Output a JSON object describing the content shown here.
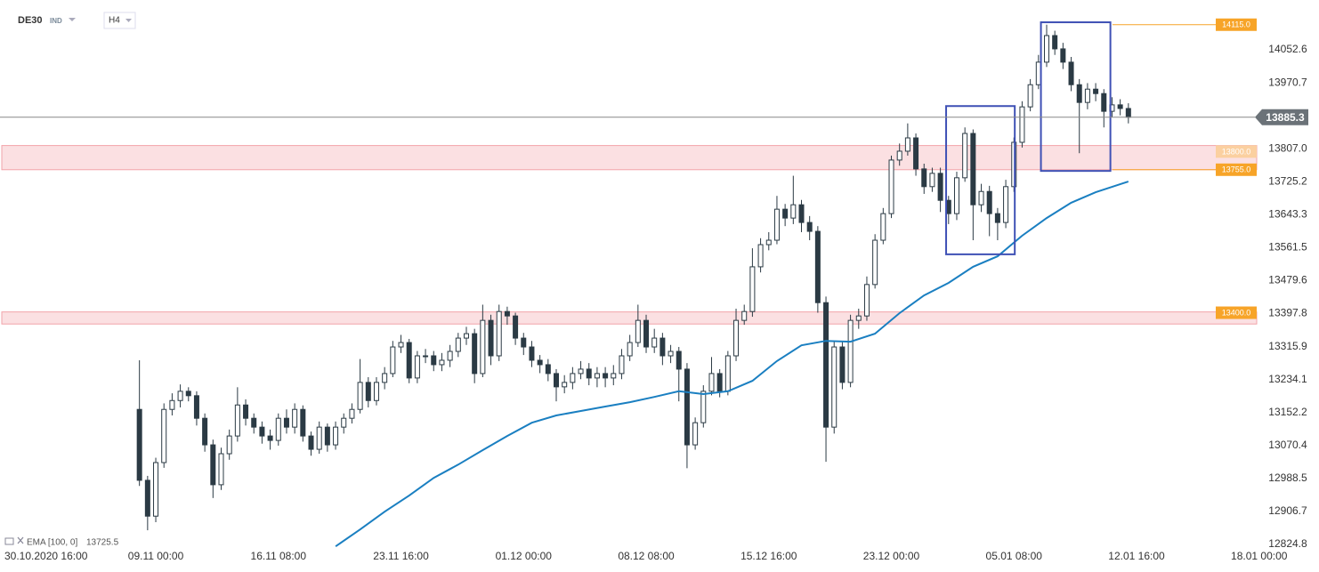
{
  "chart_data": {
    "type": "candlestick",
    "symbol": "DE30",
    "market": "IND",
    "timeframe": "H4",
    "x": [
      13,
      14,
      15,
      16,
      17,
      18,
      19,
      20,
      21,
      22,
      23,
      24,
      25,
      26,
      27,
      28,
      29,
      30,
      31,
      32,
      33,
      34,
      35,
      36,
      37,
      38,
      39,
      40,
      41,
      42,
      43,
      44,
      45,
      46,
      47,
      48,
      49,
      50,
      51,
      52,
      53,
      54,
      55,
      56,
      57,
      58,
      59,
      60,
      61,
      62,
      63,
      64,
      65,
      66,
      67,
      68,
      69,
      70,
      71,
      72,
      73,
      74,
      75,
      76,
      77,
      78,
      79,
      80,
      81,
      82,
      83,
      84,
      85,
      86,
      87,
      88,
      89,
      90,
      91,
      92,
      93,
      94,
      95,
      96,
      97,
      98,
      99,
      100,
      101,
      102,
      103,
      104,
      105,
      106,
      107,
      108,
      109,
      110,
      111,
      112,
      113,
      114,
      115,
      116,
      117,
      118,
      119,
      120,
      121,
      122,
      123,
      124,
      125,
      126,
      127,
      128,
      129,
      130,
      131,
      132,
      133,
      134
    ],
    "open": [
      13160,
      12984,
      12895,
      13028,
      13160,
      13182,
      13205,
      13194,
      13138,
      13072,
      12973,
      13050,
      13094,
      13171,
      13138,
      13116,
      13094,
      13083,
      13138,
      13116,
      13160,
      13094,
      13061,
      13116,
      13072,
      13116,
      13138,
      13160,
      13227,
      13182,
      13227,
      13249,
      13315,
      13326,
      13238,
      13293,
      13293,
      13271,
      13282,
      13304,
      13337,
      13348,
      13249,
      13381,
      13293,
      13403,
      13392,
      13337,
      13315,
      13282,
      13271,
      13249,
      13216,
      13227,
      13249,
      13260,
      13238,
      13249,
      13238,
      13249,
      13293,
      13326,
      13381,
      13315,
      13337,
      13293,
      13304,
      13260,
      13072,
      13127,
      13205,
      13249,
      13205,
      13293,
      13381,
      13403,
      13514,
      13569,
      13580,
      13657,
      13635,
      13668,
      13624,
      13602,
      13425,
      13116,
      13315,
      13227,
      13381,
      13392,
      13470,
      13580,
      13646,
      13779,
      13801,
      13834,
      13757,
      13713,
      13746,
      13679,
      13646,
      13735,
      13845,
      13668,
      13701,
      13646,
      13624,
      13713,
      13823,
      13911,
      13966,
      14022,
      14088,
      14055,
      14022,
      13966,
      13922,
      13955,
      13944,
      13900,
      13916,
      13907
    ],
    "high": [
      13282,
      12995,
      13040,
      13175,
      13200,
      13222,
      13215,
      13205,
      13150,
      13085,
      13065,
      13110,
      13215,
      13185,
      13150,
      13130,
      13110,
      13150,
      13160,
      13175,
      13170,
      13105,
      13130,
      13125,
      13130,
      13150,
      13175,
      13285,
      13240,
      13240,
      13265,
      13330,
      13345,
      13335,
      13305,
      13310,
      13305,
      13300,
      13320,
      13350,
      13365,
      13360,
      13420,
      13395,
      13420,
      13415,
      13400,
      13350,
      13330,
      13295,
      13285,
      13260,
      13245,
      13265,
      13280,
      13275,
      13265,
      13265,
      13270,
      13310,
      13345,
      13420,
      13395,
      13360,
      13350,
      13320,
      13315,
      13275,
      13140,
      13220,
      13290,
      13260,
      13305,
      13410,
      13420,
      13560,
      13585,
      13600,
      13690,
      13670,
      13740,
      13680,
      13640,
      13615,
      13440,
      13330,
      13330,
      13395,
      13410,
      13490,
      13595,
      13660,
      13790,
      13820,
      13870,
      13845,
      13770,
      13760,
      13760,
      13690,
      13750,
      13860,
      13855,
      13720,
      13715,
      13660,
      13730,
      13835,
      13925,
      13980,
      14040,
      14115,
      14100,
      14070,
      14035,
      13980,
      13970,
      13970,
      13955,
      13935,
      13930,
      13920
    ],
    "low": [
      12970,
      12860,
      12880,
      13015,
      13145,
      13165,
      13180,
      13120,
      13055,
      12940,
      12960,
      13035,
      13080,
      13120,
      13100,
      13075,
      13060,
      13070,
      13100,
      13100,
      13080,
      13045,
      13050,
      13055,
      13060,
      13100,
      13125,
      13150,
      13165,
      13170,
      13210,
      13240,
      13300,
      13225,
      13225,
      13275,
      13255,
      13255,
      13265,
      13290,
      13320,
      13225,
      13240,
      13270,
      13280,
      13370,
      13320,
      13295,
      13265,
      13250,
      13230,
      13180,
      13200,
      13210,
      13235,
      13220,
      13215,
      13215,
      13220,
      13235,
      13280,
      13315,
      13300,
      13300,
      13270,
      13275,
      13180,
      13014,
      13060,
      13115,
      13195,
      13190,
      13195,
      13280,
      13370,
      13390,
      13500,
      13555,
      13570,
      13615,
      13620,
      13600,
      13580,
      13400,
      13030,
      13100,
      13210,
      13215,
      13360,
      13380,
      13460,
      13570,
      13635,
      13765,
      13790,
      13740,
      13695,
      13700,
      13650,
      13620,
      13630,
      13725,
      13580,
      13650,
      13590,
      13580,
      13610,
      13700,
      13810,
      13900,
      13955,
      14010,
      14040,
      14005,
      13950,
      13796,
      13905,
      13925,
      13860,
      13885,
      13890,
      13870
    ],
    "close": [
      12984,
      12895,
      13028,
      13160,
      13182,
      13205,
      13194,
      13138,
      13072,
      12973,
      13050,
      13094,
      13171,
      13138,
      13116,
      13094,
      13083,
      13138,
      13116,
      13160,
      13094,
      13061,
      13116,
      13072,
      13116,
      13138,
      13160,
      13227,
      13182,
      13227,
      13249,
      13315,
      13326,
      13238,
      13293,
      13293,
      13271,
      13282,
      13304,
      13337,
      13348,
      13249,
      13381,
      13293,
      13403,
      13392,
      13337,
      13315,
      13282,
      13271,
      13249,
      13216,
      13227,
      13249,
      13260,
      13238,
      13249,
      13238,
      13249,
      13293,
      13326,
      13381,
      13315,
      13337,
      13293,
      13304,
      13260,
      13072,
      13127,
      13205,
      13249,
      13205,
      13293,
      13381,
      13403,
      13514,
      13569,
      13580,
      13657,
      13635,
      13668,
      13624,
      13602,
      13425,
      13116,
      13315,
      13227,
      13381,
      13392,
      13470,
      13580,
      13646,
      13779,
      13801,
      13834,
      13757,
      13713,
      13746,
      13679,
      13646,
      13735,
      13845,
      13668,
      13701,
      13646,
      13624,
      13713,
      13823,
      13911,
      13966,
      14022,
      14088,
      14055,
      14022,
      13966,
      13922,
      13955,
      13944,
      13900,
      13916,
      13907,
      13885.3
    ],
    "up_color": "#ffffff",
    "down_color": "#2b3a44",
    "wick_color": "#2b3a44",
    "last_price_color": "#6b7278",
    "ema": {
      "name": "EMA [100, 0]",
      "color": "#1a7fc1",
      "x": [
        37,
        40,
        43,
        46,
        49,
        52,
        55,
        58,
        61,
        64,
        67,
        70,
        73,
        76,
        79,
        82,
        85,
        88,
        91,
        94,
        97,
        100,
        103,
        106,
        109,
        112,
        115,
        118,
        121,
        124,
        127,
        130,
        133,
        134
      ],
      "values": [
        12820,
        12862,
        12906,
        12946,
        12990,
        13023,
        13059,
        13094,
        13127,
        13145,
        13156,
        13167,
        13178,
        13191,
        13205,
        13198,
        13205,
        13231,
        13280,
        13319,
        13330,
        13328,
        13348,
        13399,
        13443,
        13474,
        13514,
        13540,
        13591,
        13635,
        13673,
        13699,
        13719,
        13725.5
      ]
    },
    "zones": [
      {
        "low": 13755,
        "high": 13815,
        "color": "#f9d3d6",
        "border": "#f2a3a9"
      },
      {
        "low": 13372,
        "high": 13402,
        "color": "#f9d3d6",
        "border": "#f2a3a9"
      }
    ],
    "levels": [
      {
        "value": 14115,
        "label": "14115.0",
        "color": "#f7a428",
        "line": true
      },
      {
        "value": 13800,
        "label": "13800.0",
        "color": "#fbd0a0",
        "line": false
      },
      {
        "value": 13755,
        "label": "13755.0",
        "color": "#f7a428",
        "line": true
      },
      {
        "value": 13400,
        "label": "13400.0",
        "color": "#f7a428",
        "line": false
      }
    ],
    "boxes": [
      {
        "x": [
          111.7,
          120.1
        ],
        "y": [
          13545,
          13913
        ],
        "color": "#3f51b5"
      },
      {
        "x": [
          123.3,
          131.8
        ],
        "y": [
          13752,
          14121
        ],
        "color": "#3f51b5"
      }
    ],
    "xlim": [
      -4.06,
      149.7
    ],
    "ylim": [
      12818.2,
      14176.3
    ],
    "xticks": [
      {
        "value": 0,
        "label": "30.10.2020 16:00"
      },
      {
        "value": 15,
        "label": "09.11 00:00"
      },
      {
        "value": 30,
        "label": "16.11 08:00"
      },
      {
        "value": 45,
        "label": "23.11 16:00"
      },
      {
        "value": 60,
        "label": "01.12 00:00"
      },
      {
        "value": 75,
        "label": "08.12 08:00"
      },
      {
        "value": 90,
        "label": "15.12 16:00"
      },
      {
        "value": 105,
        "label": "23.12 00:00"
      },
      {
        "value": 120,
        "label": "05.01 08:00"
      },
      {
        "value": 135,
        "label": "12.01 16:00"
      },
      {
        "value": 150,
        "label": "18.01 00:00"
      }
    ],
    "yticks": [
      14052.6,
      13970.7,
      {
        "value": 13807,
        "label": "13807.0"
      },
      13725.2,
      13643.3,
      13561.5,
      13479.6,
      13397.8,
      13315.9,
      13234.1,
      13152.2,
      13070.4,
      12988.5,
      12906.7,
      12824.8
    ]
  }
}
